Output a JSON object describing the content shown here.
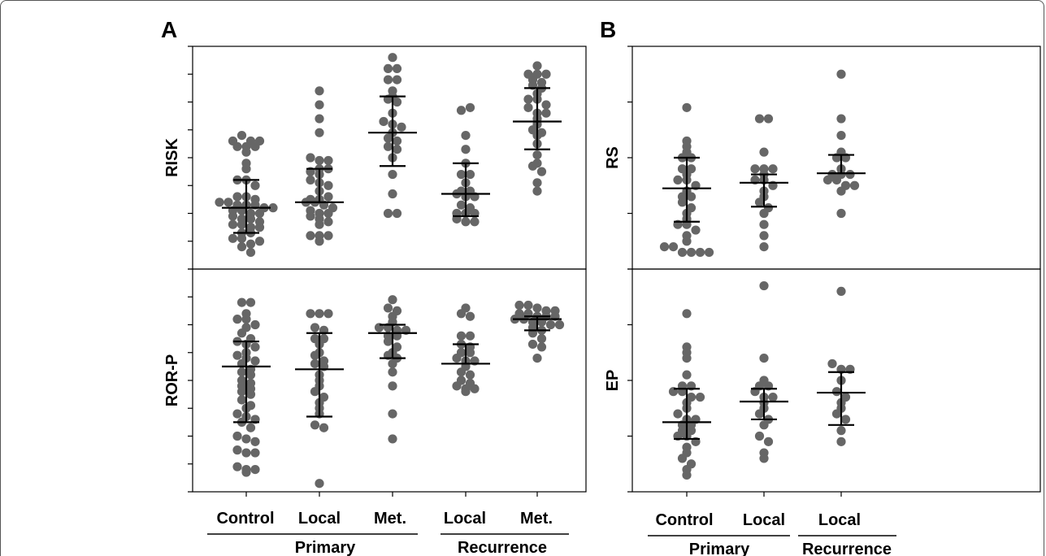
{
  "panels": {
    "a": "A",
    "b": "B"
  },
  "groups": {
    "primary": "Primary",
    "recurrence": "Recurrence"
  },
  "colors": {
    "dot": "#666666",
    "line": "#000000"
  },
  "chart_data": [
    {
      "type": "scatter",
      "panel": "A",
      "ylabel": "RISK",
      "categories": [
        "Control",
        "Local",
        "Met.",
        "Local",
        "Met."
      ],
      "groups": [
        "Primary",
        "Primary",
        "Primary",
        "Recurrence",
        "Recurrence"
      ],
      "ylim": [
        0,
        8
      ],
      "yticks": [
        0,
        1,
        2,
        3,
        4,
        5,
        6,
        7,
        8
      ],
      "grid": false,
      "series": [
        {
          "values": [
            4.6,
            4.8,
            4.4,
            4.2,
            4.6,
            4.4,
            4.6,
            4.4,
            3.8,
            3.6,
            3.2,
            3.2,
            3.0,
            2.6,
            2.6,
            2.5,
            2.4,
            2.4,
            2.3,
            2.3,
            2.3,
            2.2,
            2.2,
            2.1,
            2.1,
            2.0,
            2.0,
            1.9,
            1.8,
            1.8,
            1.7,
            1.6,
            1.6,
            1.5,
            1.5,
            1.3,
            1.3,
            1.1,
            1.1,
            0.9,
            1.0,
            0.8,
            0.6
          ],
          "mean": 2.2,
          "err_low": 1.3,
          "err_high": 3.2
        },
        {
          "values": [
            4.9,
            6.4,
            5.4,
            5.9,
            3.5,
            4.0,
            3.9,
            3.9,
            3.6,
            3.6,
            3.4,
            3.2,
            3.1,
            3.0,
            2.8,
            2.5,
            2.5,
            2.6,
            2.4,
            2.4,
            2.3,
            2.2,
            2.1,
            2.0,
            2.0,
            1.9,
            1.8,
            1.7,
            1.6,
            1.2,
            1.2,
            1.0,
            1.2
          ],
          "mean": 2.4,
          "err_low": 2.4,
          "err_high": 3.6
        },
        {
          "values": [
            7.6,
            7.2,
            7.2,
            6.8,
            6.8,
            6.4,
            6.2,
            6.1,
            6.0,
            5.6,
            5.3,
            5.2,
            5.1,
            4.7,
            4.9,
            4.6,
            4.4,
            4.3,
            4.0,
            3.4,
            2.7,
            2.0,
            2.0
          ],
          "mean": 4.9,
          "err_low": 3.7,
          "err_high": 6.2
        },
        {
          "values": [
            5.7,
            5.8,
            4.8,
            4.3,
            3.8,
            3.4,
            3.4,
            3.1,
            2.8,
            2.8,
            2.7,
            2.6,
            2.6,
            2.3,
            2.2,
            2.0,
            2.0,
            2.0,
            1.8,
            1.7,
            1.7
          ],
          "mean": 2.7,
          "err_low": 1.9,
          "err_high": 3.8
        },
        {
          "values": [
            7.3,
            7.0,
            7.0,
            7.0,
            6.8,
            6.7,
            6.6,
            6.5,
            6.3,
            6.1,
            6.1,
            5.9,
            5.8,
            5.6,
            5.6,
            5.4,
            5.2,
            5.0,
            4.9,
            4.8,
            4.5,
            4.1,
            3.8,
            3.7,
            3.5,
            3.1,
            2.8
          ],
          "mean": 5.3,
          "err_low": 4.3,
          "err_high": 6.5
        }
      ]
    },
    {
      "type": "scatter",
      "panel": "A",
      "ylabel": "ROR-P",
      "categories": [
        "Control",
        "Local",
        "Met.",
        "Local",
        "Met."
      ],
      "groups": [
        "Primary",
        "Primary",
        "Primary",
        "Recurrence",
        "Recurrence"
      ],
      "ylim": [
        0,
        8
      ],
      "yticks": [
        0,
        1,
        2,
        3,
        4,
        5,
        6,
        7,
        8
      ],
      "grid": false,
      "series": [
        {
          "values": [
            6.8,
            6.8,
            6.4,
            6.2,
            6.2,
            6.0,
            5.9,
            5.7,
            5.5,
            5.4,
            5.3,
            5.2,
            5.0,
            4.9,
            4.8,
            4.7,
            4.6,
            4.4,
            4.3,
            4.2,
            4.0,
            3.9,
            3.8,
            3.7,
            3.6,
            3.5,
            3.3,
            3.1,
            3.0,
            2.8,
            2.7,
            2.6,
            2.5,
            2.3,
            2.0,
            1.9,
            1.8,
            1.5,
            1.4,
            1.4,
            0.9,
            0.8,
            0.8,
            0.7
          ],
          "mean": 4.5,
          "err_low": 2.5,
          "err_high": 5.4
        },
        {
          "values": [
            6.4,
            6.4,
            6.4,
            5.9,
            5.8,
            5.5,
            5.5,
            5.3,
            5.0,
            4.9,
            4.7,
            4.6,
            4.5,
            4.2,
            4.0,
            3.8,
            3.6,
            3.4,
            3.2,
            3.0,
            2.8,
            2.4,
            2.3,
            0.3
          ],
          "mean": 4.4,
          "err_low": 2.7,
          "err_high": 5.7
        },
        {
          "values": [
            6.9,
            6.6,
            6.5,
            6.3,
            6.1,
            5.9,
            5.9,
            5.8,
            5.8,
            5.6,
            5.6,
            5.4,
            5.2,
            5.0,
            4.9,
            4.8,
            4.6,
            4.3,
            3.8,
            2.8,
            1.9
          ],
          "mean": 5.7,
          "err_low": 4.8,
          "err_high": 6.0
        },
        {
          "values": [
            6.6,
            6.4,
            6.3,
            5.6,
            5.6,
            5.3,
            5.2,
            5.0,
            5.0,
            4.8,
            4.7,
            4.7,
            4.5,
            4.3,
            4.2,
            4.0,
            3.9,
            3.8,
            3.7,
            3.7,
            3.6
          ],
          "mean": 4.6,
          "err_low": 4.6,
          "err_high": 5.3
        },
        {
          "values": [
            6.7,
            6.7,
            6.6,
            6.5,
            6.5,
            6.4,
            6.4,
            6.3,
            6.3,
            6.3,
            6.2,
            6.2,
            6.1,
            6.1,
            6.0,
            6.0,
            5.9,
            5.8,
            5.7,
            5.5,
            5.3,
            5.2,
            4.8
          ],
          "mean": 6.2,
          "err_low": 5.8,
          "err_high": 6.3
        }
      ]
    },
    {
      "type": "scatter",
      "panel": "B",
      "ylabel": "RS",
      "categories": [
        "Control",
        "Local",
        "Local"
      ],
      "groups": [
        "Primary",
        "Primary",
        "Recurrence"
      ],
      "ylim": [
        0,
        4
      ],
      "yticks": [
        0,
        1,
        2,
        3,
        4
      ],
      "grid": false,
      "series": [
        {
          "values": [
            2.9,
            2.3,
            2.2,
            2.1,
            2.0,
            2.0,
            1.8,
            1.8,
            1.7,
            1.6,
            1.6,
            1.5,
            1.4,
            1.3,
            1.3,
            1.2,
            1.1,
            1.0,
            0.9,
            0.8,
            0.8,
            0.7,
            0.6,
            0.5,
            0.4,
            0.4,
            0.3,
            0.3,
            0.3,
            0.3
          ],
          "mean": 1.45,
          "err_low": 0.85,
          "err_high": 2.0
        },
        {
          "values": [
            2.7,
            2.7,
            2.1,
            1.8,
            1.8,
            1.8,
            1.7,
            1.6,
            1.6,
            1.5,
            1.4,
            1.3,
            1.2,
            1.1,
            1.0,
            0.8,
            0.6,
            0.4
          ],
          "mean": 1.55,
          "err_low": 1.12,
          "err_high": 1.7
        },
        {
          "values": [
            3.5,
            2.7,
            2.4,
            2.1,
            2.0,
            2.0,
            1.8,
            1.7,
            1.7,
            1.7,
            1.6,
            1.6,
            1.5,
            1.5,
            1.4,
            1.0
          ],
          "mean": 1.72,
          "err_low": 1.72,
          "err_high": 2.05
        }
      ]
    },
    {
      "type": "scatter",
      "panel": "B",
      "ylabel": "EP",
      "categories": [
        "Control",
        "Local",
        "Local"
      ],
      "groups": [
        "Primary",
        "Primary",
        "Recurrence"
      ],
      "ylim": [
        0,
        4
      ],
      "yticks": [
        0,
        1,
        2,
        3,
        4
      ],
      "grid": false,
      "series": [
        {
          "values": [
            3.2,
            2.6,
            2.5,
            2.4,
            2.1,
            1.9,
            1.9,
            1.8,
            1.8,
            1.7,
            1.7,
            1.6,
            1.5,
            1.4,
            1.3,
            1.3,
            1.2,
            1.2,
            1.1,
            1.1,
            1.0,
            1.0,
            0.9,
            0.8,
            0.7,
            0.6,
            0.5,
            0.4,
            0.3
          ],
          "mean": 1.25,
          "err_low": 0.95,
          "err_high": 1.85
        },
        {
          "values": [
            3.7,
            2.4,
            2.0,
            1.9,
            1.9,
            1.8,
            1.7,
            1.7,
            1.6,
            1.5,
            1.4,
            1.3,
            1.2,
            1.0,
            0.9,
            0.7,
            0.6
          ],
          "mean": 1.62,
          "err_low": 1.3,
          "err_high": 1.85
        },
        {
          "values": [
            3.6,
            2.3,
            2.2,
            2.2,
            2.0,
            1.8,
            1.7,
            1.6,
            1.5,
            1.4,
            1.3,
            1.1,
            0.9
          ],
          "mean": 1.78,
          "err_low": 1.2,
          "err_high": 2.15
        }
      ]
    }
  ]
}
